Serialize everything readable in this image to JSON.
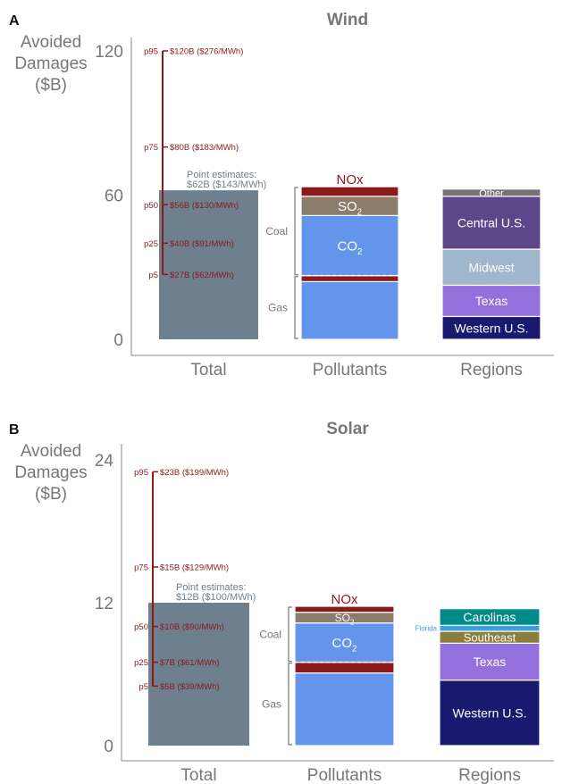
{
  "colors": {
    "total": "#6e7f8d",
    "co2": "#6495ed",
    "so2": "#8b7d6b",
    "nox": "#8b1a1a",
    "western": "#191970",
    "texas": "#9370db",
    "midwest": "#9fb6cd",
    "central": "#5d478b",
    "other": "#737373",
    "southeast": "#8b7d3a",
    "florida": "#3aa0e0",
    "carolinas": "#008b8b",
    "axis": "#888888",
    "axis_text": "#777777",
    "title_text": "#777777",
    "percentile": "#8b1a1a",
    "point_estimate_text": "#6e7f8d"
  },
  "chart_data": [
    {
      "type": "bar",
      "panel_label": "A",
      "title": "Wind",
      "ylabel_lines": [
        "Avoided",
        "Damages",
        "($B)"
      ],
      "ylim": [
        0,
        120
      ],
      "yticks": [
        "0",
        "60",
        "120"
      ],
      "categories": [
        "Total",
        "Pollutants",
        "Regions"
      ],
      "total": {
        "value": 62,
        "point_estimate_lines": [
          "Point estimates:",
          "$62B ($143/MWh)"
        ],
        "percentiles": [
          {
            "label": "p5",
            "value": 27,
            "text": "$27B ($62/MWh)"
          },
          {
            "label": "p25",
            "value": 40,
            "text": "$40B ($91/MWh)"
          },
          {
            "label": "p50",
            "value": 56,
            "text": "$56B ($130/MWh)"
          },
          {
            "label": "p75",
            "value": 80,
            "text": "$80B ($183/MWh)"
          },
          {
            "label": "p95",
            "value": 120,
            "text": "$120B ($276/MWh)"
          }
        ]
      },
      "pollutants": {
        "segments": [
          {
            "key": "co2",
            "label": "",
            "value": 24,
            "group": "Gas"
          },
          {
            "key": "nox",
            "label": "",
            "value": 2.5,
            "group": "Gas"
          },
          {
            "key": "co2",
            "label": "CO",
            "sub": "2",
            "value": 25,
            "group": "Coal"
          },
          {
            "key": "so2",
            "label": "SO",
            "sub": "2",
            "value": 8,
            "group": "Coal"
          },
          {
            "key": "nox",
            "label": "NOx",
            "value": 4,
            "group": "Coal",
            "label_above": true
          }
        ],
        "groups": [
          "Gas",
          "Coal"
        ]
      },
      "regions": {
        "segments": [
          {
            "key": "western",
            "label": "Western U.S.",
            "value": 9.5
          },
          {
            "key": "texas",
            "label": "Texas",
            "value": 13
          },
          {
            "key": "midwest",
            "label": "Midwest",
            "value": 15
          },
          {
            "key": "central",
            "label": "Central U.S.",
            "value": 22
          },
          {
            "key": "other",
            "label": "Other",
            "value": 3
          }
        ]
      }
    },
    {
      "type": "bar",
      "panel_label": "B",
      "title": "Solar",
      "ylabel_lines": [
        "Avoided",
        "Damages",
        "($B)"
      ],
      "ylim": [
        0,
        24
      ],
      "yticks": [
        "0",
        "12",
        "24"
      ],
      "categories": [
        "Total",
        "Pollutants",
        "Regions"
      ],
      "total": {
        "value": 12,
        "point_estimate_lines": [
          "Point estimates:",
          "$12B ($100/MWh)"
        ],
        "percentiles": [
          {
            "label": "p5",
            "value": 5,
            "text": "$5B ($39/MWh)"
          },
          {
            "label": "p25",
            "value": 7,
            "text": "$7B ($61/MWh)"
          },
          {
            "label": "p50",
            "value": 10,
            "text": "$10B ($90/MWh)"
          },
          {
            "label": "p75",
            "value": 15,
            "text": "$15B ($129/MWh)"
          },
          {
            "label": "p95",
            "value": 23,
            "text": "$23B ($199/MWh)"
          }
        ]
      },
      "pollutants": {
        "segments": [
          {
            "key": "co2",
            "label": "",
            "value": 6.1,
            "group": "Gas"
          },
          {
            "key": "nox",
            "label": "",
            "value": 0.9,
            "group": "Gas"
          },
          {
            "key": "co2",
            "label": "CO",
            "sub": "2",
            "value": 3.3,
            "group": "Coal"
          },
          {
            "key": "so2",
            "label": "SO",
            "sub": "2",
            "value": 0.9,
            "group": "Coal"
          },
          {
            "key": "nox",
            "label": "NOx",
            "value": 0.5,
            "group": "Coal",
            "label_above": true
          }
        ],
        "groups": [
          "Gas",
          "Coal"
        ]
      },
      "regions": {
        "segments": [
          {
            "key": "western",
            "label": "Western U.S.",
            "value": 5.5
          },
          {
            "key": "texas",
            "label": "Texas",
            "value": 3.1
          },
          {
            "key": "southeast",
            "label": "Southeast",
            "value": 1.0
          },
          {
            "key": "florida",
            "label": "Florida",
            "value": 0.5,
            "label_outside": true
          },
          {
            "key": "carolinas",
            "label": "Carolinas",
            "value": 1.4
          }
        ]
      }
    }
  ]
}
